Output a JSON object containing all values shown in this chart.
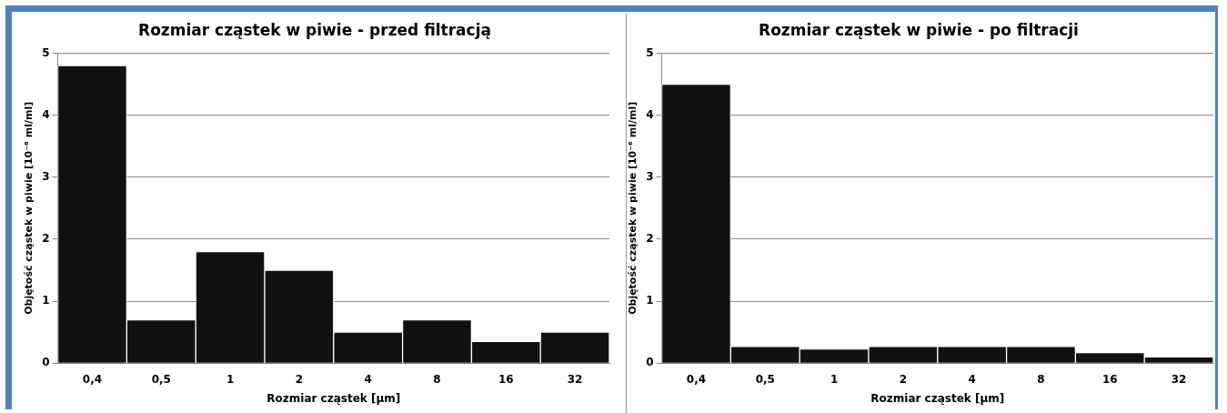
{
  "chart_data": [
    {
      "type": "bar",
      "title": "Rozmiar cząstek w piwie - przed filtracją",
      "xlabel": "Rozmiar cząstek [µm]",
      "ylabel": "Objętość cząstek w piwie [10⁻⁶ ml/ml]",
      "categories": [
        "0,4",
        "0,5",
        "1",
        "2",
        "4",
        "8",
        "16",
        "32"
      ],
      "values": [
        4.8,
        0.7,
        1.8,
        1.5,
        0.5,
        0.7,
        0.35,
        0.5
      ],
      "color": "#111111",
      "ylim": [
        0,
        5
      ],
      "yticks": [
        0,
        1,
        2,
        3,
        4,
        5
      ],
      "grid": "y",
      "legend": false
    },
    {
      "type": "bar",
      "title": "Rozmiar cząstek w piwie - po filtracji",
      "xlabel": "Rozmiar cząstek [µm]",
      "ylabel": "Objętość cząstek w piwie [10⁻⁶ ml/ml]",
      "categories": [
        "0,4",
        "0,5",
        "1",
        "2",
        "4",
        "8",
        "16",
        "32"
      ],
      "values": [
        4.5,
        0.27,
        0.23,
        0.27,
        0.27,
        0.27,
        0.17,
        0.1
      ],
      "color": "#111111",
      "ylim": [
        0,
        5
      ],
      "yticks": [
        0,
        1,
        2,
        3,
        4,
        5
      ],
      "grid": "y",
      "legend": false
    }
  ]
}
